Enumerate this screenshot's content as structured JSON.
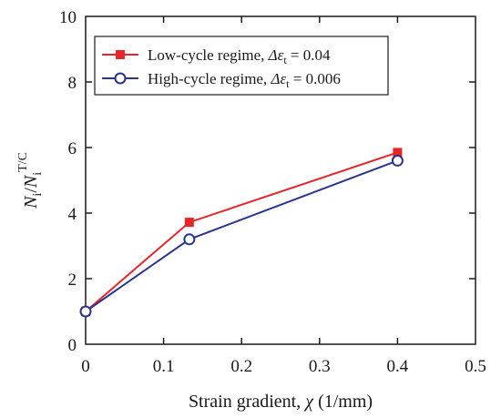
{
  "chart_data": {
    "type": "line",
    "xlabel_main": "Strain gradient, ",
    "xlabel_symbol": "χ",
    "xlabel_unit": " (1/mm)",
    "ylabel_N": "N",
    "ylabel_sub_i": "i",
    "ylabel_slash": "/",
    "ylabel_N2": "N",
    "ylabel_sub_i2": "i",
    "ylabel_sup": "T/C",
    "xlim": [
      0,
      0.5
    ],
    "ylim": [
      0,
      10
    ],
    "xticks": [
      0,
      0.1,
      0.2,
      0.3,
      0.4,
      0.5
    ],
    "yticks": [
      0,
      2,
      4,
      6,
      8,
      10
    ],
    "xtick_labels": [
      "0",
      "0.1",
      "0.2",
      "0.3",
      "0.4",
      "0.5"
    ],
    "ytick_labels": [
      "0",
      "2",
      "4",
      "6",
      "8",
      "10"
    ],
    "grid": false,
    "legend_position": "top-left",
    "series": [
      {
        "label_prefix": "Low-cycle regime, ",
        "label_symbol": "Δε",
        "label_sub": "t",
        "label_suffix": " = 0.04",
        "color": "#e8262a",
        "marker": "filled-square",
        "x": [
          0,
          0.133,
          0.4
        ],
        "y": [
          1.0,
          3.72,
          5.85
        ]
      },
      {
        "label_prefix": "High-cycle regime, ",
        "label_symbol": "Δε",
        "label_sub": "t",
        "label_suffix": " = 0.006",
        "color": "#2b3590",
        "marker": "open-circle",
        "x": [
          0,
          0.133,
          0.4
        ],
        "y": [
          1.0,
          3.2,
          5.6
        ]
      }
    ]
  }
}
